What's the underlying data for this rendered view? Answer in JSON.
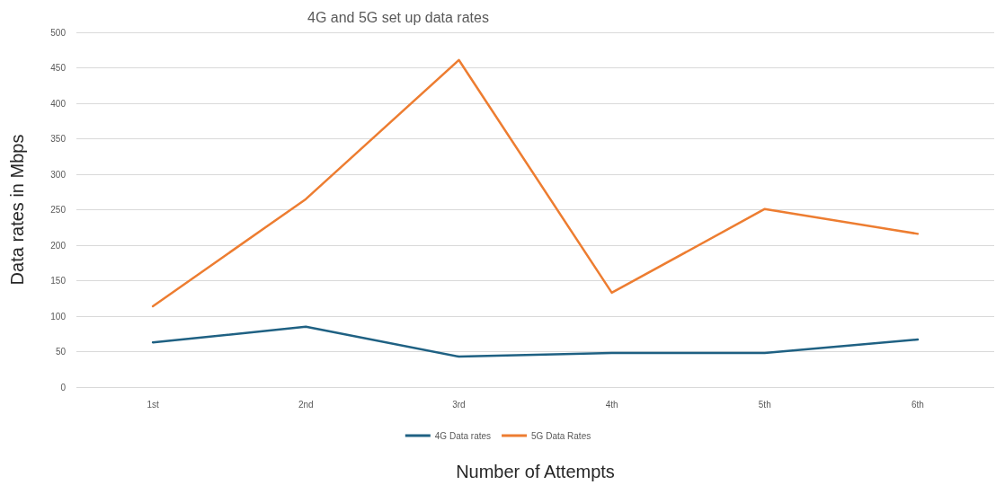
{
  "chart_data": {
    "type": "line",
    "title": "4G and 5G set up data rates",
    "xlabel": "Number of Attempts",
    "ylabel": "Data rates in Mbps",
    "categories": [
      "1st",
      "2nd",
      "3rd",
      "4th",
      "5th",
      "6th"
    ],
    "series": [
      {
        "name": "4G Data rates",
        "color": "#1f6183",
        "values": [
          63,
          85,
          43,
          48,
          48,
          67
        ]
      },
      {
        "name": "5G Data Rates",
        "color": "#ed7d31",
        "values": [
          114,
          265,
          461,
          133,
          251,
          216
        ]
      }
    ],
    "ylim": [
      0,
      500
    ],
    "yticks": [
      0,
      50,
      100,
      150,
      200,
      250,
      300,
      350,
      400,
      450,
      500
    ],
    "grid": "y",
    "legend": "bottom",
    "marker": "none",
    "line_style": "solid"
  }
}
